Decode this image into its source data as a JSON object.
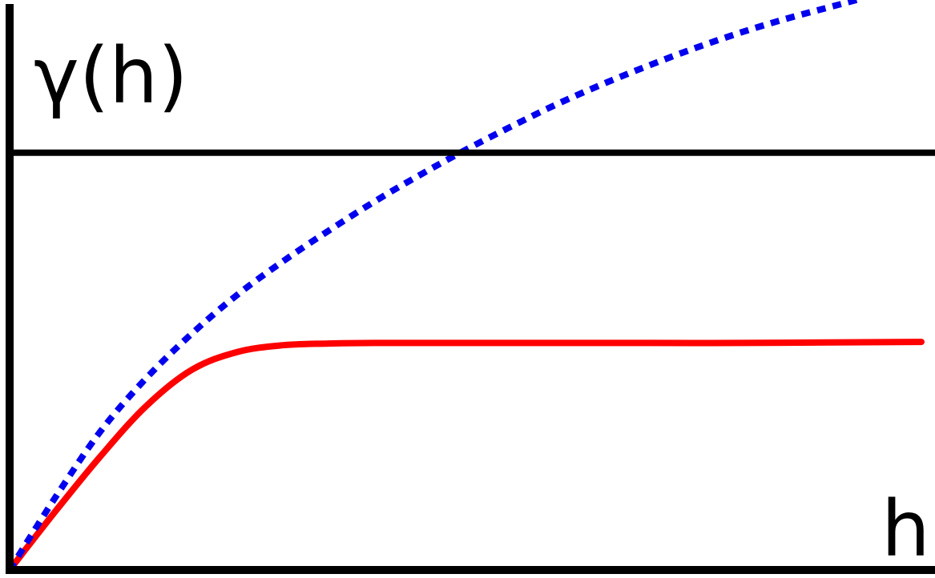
{
  "chart_data": {
    "type": "line",
    "xlabel": "h",
    "ylabel": "γ(h)",
    "xlim": [
      0,
      10
    ],
    "ylim": [
      0,
      10
    ],
    "grid": false,
    "reference_line": {
      "y": 7.5
    },
    "series": [
      {
        "style": "solid",
        "color": "#ff0000",
        "x": [
          0,
          0.5,
          1,
          1.5,
          2,
          2.5,
          3,
          3.5,
          4,
          5,
          6,
          7,
          8,
          9,
          10
        ],
        "y": [
          0,
          1.05,
          2.05,
          2.95,
          3.6,
          3.92,
          4.04,
          4.07,
          4.08,
          4.08,
          4.08,
          4.08,
          4.08,
          4.09,
          4.1
        ]
      },
      {
        "style": "dotted",
        "color": "#0000ee",
        "x": [
          0,
          0.5,
          1,
          1.5,
          2,
          2.5,
          3,
          3.5,
          4,
          4.5,
          5,
          5.5,
          6,
          6.5,
          7,
          7.5,
          8,
          8.5,
          9,
          9.3
        ],
        "y": [
          0,
          1.3,
          2.5,
          3.45,
          4.25,
          4.95,
          5.55,
          6.1,
          6.62,
          7.1,
          7.55,
          7.97,
          8.37,
          8.73,
          9.06,
          9.37,
          9.65,
          9.9,
          10.12,
          10.25
        ]
      }
    ]
  }
}
